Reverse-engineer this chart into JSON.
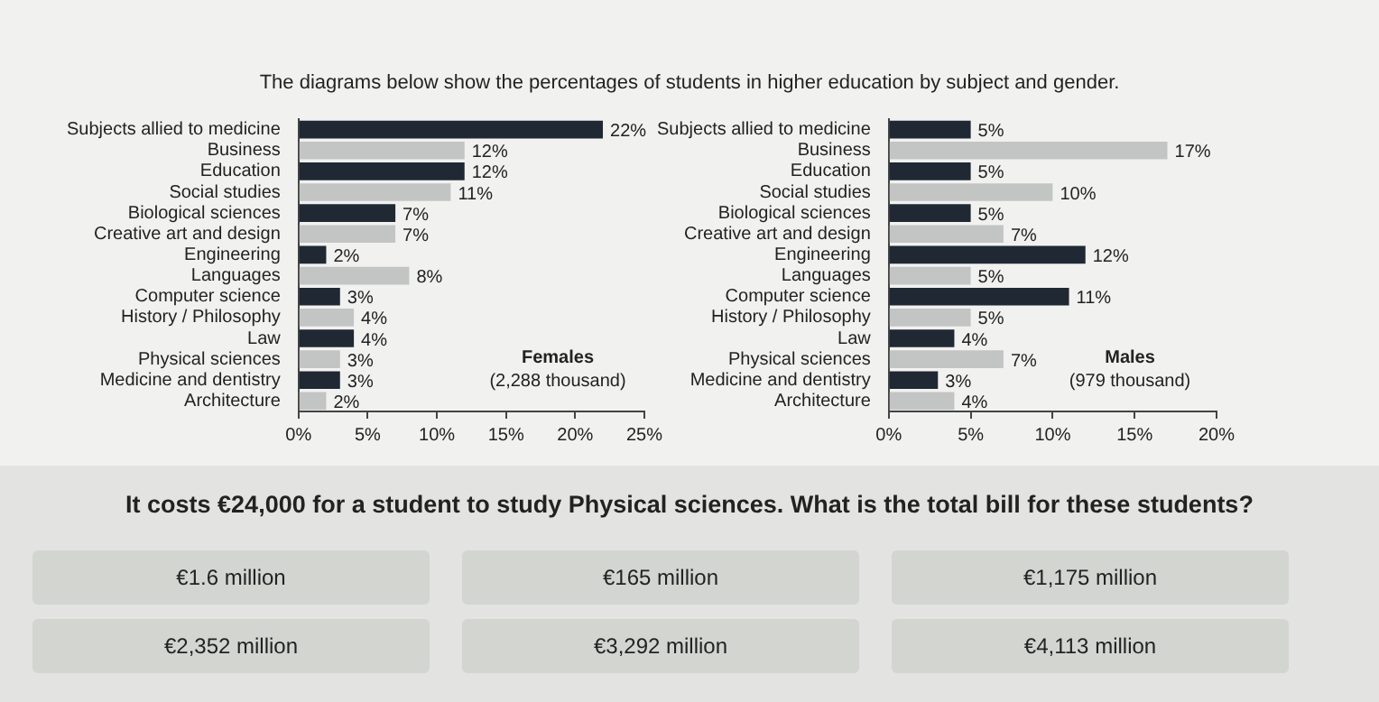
{
  "chart_data": [
    {
      "type": "bar",
      "orientation": "horizontal",
      "title": "The diagrams below show the percentages of students in higher education by subject and gender.",
      "categories": [
        "Subjects allied to medicine",
        "Business",
        "Education",
        "Social studies",
        "Biological sciences",
        "Creative art and design",
        "Engineering",
        "Languages",
        "Computer science",
        "History / Philosophy",
        "Law",
        "Physical sciences",
        "Medicine and dentistry",
        "Architecture"
      ],
      "values": [
        22,
        12,
        12,
        11,
        7,
        7,
        2,
        8,
        3,
        4,
        4,
        3,
        3,
        2
      ],
      "value_labels": [
        "22%",
        "12%",
        "12%",
        "11%",
        "7%",
        "7%",
        "2%",
        "8%",
        "3%",
        "4%",
        "4%",
        "3%",
        "3%",
        "2%"
      ],
      "colors": [
        "#1f2833",
        "#c3c5c5",
        "#1f2833",
        "#c3c5c5",
        "#1f2833",
        "#c3c5c5",
        "#1f2833",
        "#c3c5c5",
        "#1f2833",
        "#c3c5c5",
        "#1f2833",
        "#c3c5c5",
        "#1f2833",
        "#c3c5c5"
      ],
      "xlim": [
        0,
        25
      ],
      "xticks": [
        {
          "value": 0,
          "label": "0%"
        },
        {
          "value": 5,
          "label": "5%"
        },
        {
          "value": 10,
          "label": "10%"
        },
        {
          "value": 15,
          "label": "15%"
        },
        {
          "value": 20,
          "label": "20%"
        },
        {
          "value": 25,
          "label": "25%"
        }
      ],
      "annotations": [
        "Females",
        "(2,288 thousand)"
      ],
      "grid": false,
      "legend": false
    },
    {
      "type": "bar",
      "orientation": "horizontal",
      "categories": [
        "Subjects allied to medicine",
        "Business",
        "Education",
        "Social studies",
        "Biological sciences",
        "Creative art and design",
        "Engineering",
        "Languages",
        "Computer science",
        "History / Philosophy",
        "Law",
        "Physical sciences",
        "Medicine and dentistry",
        "Architecture"
      ],
      "values": [
        5,
        17,
        5,
        10,
        5,
        7,
        12,
        5,
        11,
        5,
        4,
        7,
        3,
        4
      ],
      "value_labels": [
        "5%",
        "17%",
        "5%",
        "10%",
        "5%",
        "7%",
        "12%",
        "5%",
        "11%",
        "5%",
        "4%",
        "7%",
        "3%",
        "4%"
      ],
      "colors": [
        "#1f2833",
        "#c3c5c5",
        "#1f2833",
        "#c3c5c5",
        "#1f2833",
        "#c3c5c5",
        "#1f2833",
        "#c3c5c5",
        "#1f2833",
        "#c3c5c5",
        "#1f2833",
        "#c3c5c5",
        "#1f2833",
        "#c3c5c5"
      ],
      "xlim": [
        0,
        20
      ],
      "xticks": [
        {
          "value": 0,
          "label": "0%"
        },
        {
          "value": 5,
          "label": "5%"
        },
        {
          "value": 10,
          "label": "10%"
        },
        {
          "value": 15,
          "label": "15%"
        },
        {
          "value": 20,
          "label": "20%"
        }
      ],
      "annotations": [
        "Males",
        "(979 thousand)"
      ],
      "grid": false,
      "legend": false
    },
    {
      "type": "other",
      "title": "It costs €24,000 for a student to study Physical sciences. What is the total bill for these students?",
      "annotations": [
        "€1.6 million",
        "€165 million",
        "€1,175 million",
        "€2,352 million",
        "€3,292 million",
        "€4,113 million"
      ]
    }
  ]
}
